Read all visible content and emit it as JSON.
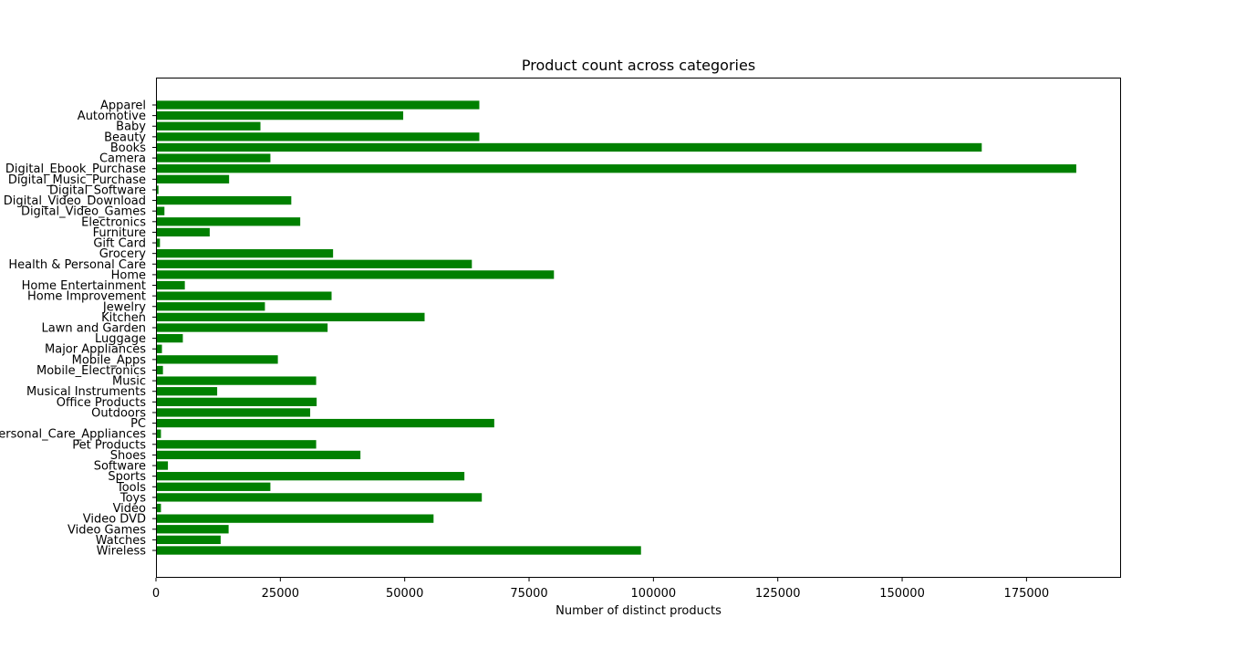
{
  "chart_data": {
    "type": "bar",
    "orientation": "horizontal",
    "title": "Product count across categories",
    "xlabel": "Number of distinct products",
    "ylabel": "",
    "xlim": [
      0,
      194000
    ],
    "xticks": [
      0,
      25000,
      50000,
      75000,
      100000,
      125000,
      150000,
      175000
    ],
    "xtick_labels": [
      "0",
      "25000",
      "50000",
      "75000",
      "100000",
      "125000",
      "150000",
      "175000"
    ],
    "grid": false,
    "legend": "none",
    "bar_color": "#008000",
    "categories": [
      "Apparel",
      "Automotive",
      "Baby",
      "Beauty",
      "Books",
      "Camera",
      "Digital_Ebook_Purchase",
      "Digital_Music_Purchase",
      "Digital_Software",
      "Digital_Video_Download",
      "Digital_Video_Games",
      "Electronics",
      "Furniture",
      "Gift Card",
      "Grocery",
      "Health & Personal Care",
      "Home",
      "Home Entertainment",
      "Home Improvement",
      "Jewelry",
      "Kitchen",
      "Lawn and Garden",
      "Luggage",
      "Major Appliances",
      "Mobile_Apps",
      "Mobile_Electronics",
      "Music",
      "Musical Instruments",
      "Office Products",
      "Outdoors",
      "PC",
      "Personal_Care_Appliances",
      "Pet Products",
      "Shoes",
      "Software",
      "Sports",
      "Tools",
      "Toys",
      "Video",
      "Video DVD",
      "Video Games",
      "Watches",
      "Wireless"
    ],
    "values": [
      65000,
      49700,
      21000,
      65000,
      166000,
      23000,
      185000,
      14700,
      500,
      27200,
      1700,
      29000,
      10800,
      800,
      35600,
      63500,
      80000,
      5800,
      35300,
      21900,
      54000,
      34500,
      5400,
      1200,
      24500,
      1400,
      32200,
      12300,
      32300,
      31000,
      68000,
      1000,
      32200,
      41100,
      2400,
      62000,
      23000,
      65500,
      1000,
      55800,
      14600,
      13000,
      97500
    ]
  }
}
